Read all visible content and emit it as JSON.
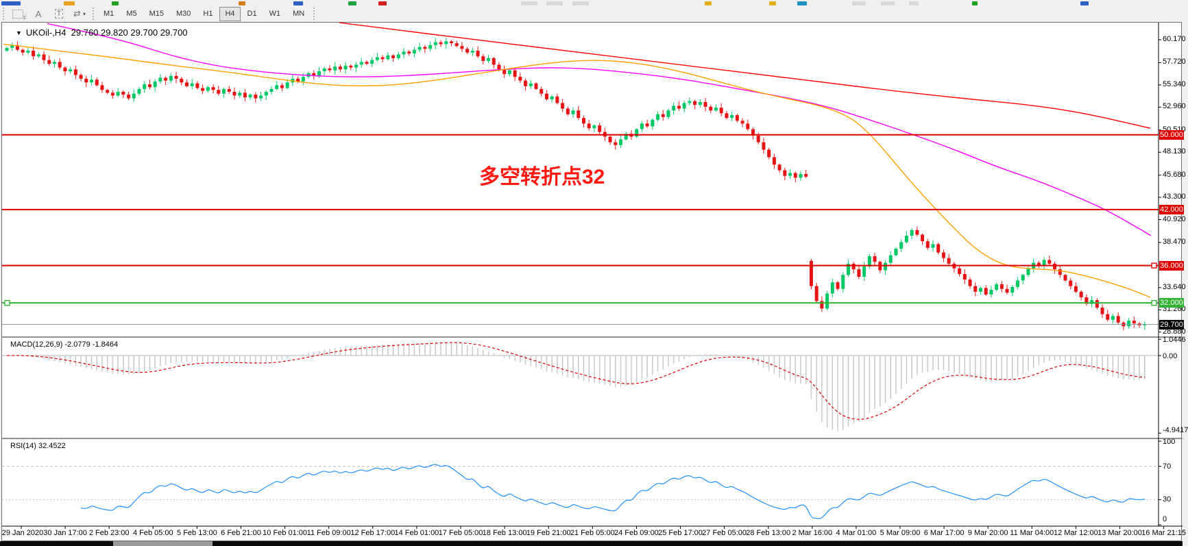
{
  "toolbar_top_fragments": [
    {
      "x": 2,
      "w": 28,
      "c": "#2f5fc4"
    },
    {
      "x": 93,
      "w": 16,
      "c": "#e8a020"
    },
    {
      "x": 163,
      "w": 10,
      "c": "#22a022"
    },
    {
      "x": 348,
      "w": 10,
      "c": "#d08020"
    },
    {
      "x": 428,
      "w": 14,
      "c": "#3060c0"
    },
    {
      "x": 508,
      "w": 12,
      "c": "#22a044"
    },
    {
      "x": 552,
      "w": 12,
      "c": "#d02020"
    },
    {
      "x": 760,
      "w": 24,
      "c": "#d8d8d8"
    },
    {
      "x": 797,
      "w": 24,
      "c": "#d8d8d8"
    },
    {
      "x": 835,
      "w": 24,
      "c": "#d8d8d8"
    },
    {
      "x": 1028,
      "w": 10,
      "c": "#e0b020"
    },
    {
      "x": 1122,
      "w": 10,
      "c": "#e0b020"
    },
    {
      "x": 1163,
      "w": 14,
      "c": "#2090c0"
    },
    {
      "x": 1243,
      "w": 20,
      "c": "#d8d8d8"
    },
    {
      "x": 1285,
      "w": 20,
      "c": "#d8d8d8"
    },
    {
      "x": 1326,
      "w": 14,
      "c": "#d8d8d8"
    },
    {
      "x": 1418,
      "w": 8,
      "c": "#22a022"
    },
    {
      "x": 1576,
      "w": 12,
      "c": "#3060c0"
    }
  ],
  "toolbar": {
    "tools": [
      {
        "name": "fibonacci-tool",
        "glyph": ""
      },
      {
        "name": "text-tool",
        "glyph": "A"
      },
      {
        "name": "label-tool",
        "glyph": "T"
      },
      {
        "name": "arrows-tool",
        "glyph": "⇄"
      }
    ],
    "timeframes": [
      "M1",
      "M5",
      "M15",
      "M30",
      "H1",
      "H4",
      "D1",
      "W1",
      "MN"
    ],
    "active_timeframe": "H4"
  },
  "chart": {
    "collapse_icon": "▼",
    "symbol_line": "UKOil-,H4  29.760 29.820 29.700 29.700",
    "annotation": {
      "text": "多空转折点32",
      "color": "#ff1810"
    },
    "price_axis_ticks": [
      "60.170",
      "57.720",
      "55.340",
      "52.960",
      "50.510",
      "48.130",
      "45.680",
      "43.300",
      "40.920",
      "38.470",
      "33.640",
      "31.260",
      "28.880"
    ],
    "hlines": [
      {
        "label": "50.000",
        "price": 50.0,
        "color": "#e00000",
        "width": 2,
        "handles": []
      },
      {
        "label": "42.000",
        "price": 42.0,
        "color": "#e00000",
        "width": 2,
        "handles": []
      },
      {
        "label": "36.000",
        "price": 36.0,
        "color": "#e00000",
        "width": 2,
        "handles": [
          "right"
        ]
      },
      {
        "label": "32.000",
        "price": 32.0,
        "color": "#32b432",
        "width": 2,
        "handles": [
          "left",
          "right"
        ]
      }
    ],
    "bid_line": {
      "label": "29.700",
      "price": 29.7,
      "color": "#8c98a4",
      "badge_bg": "#000000"
    }
  },
  "macd": {
    "label": "MACD(12,26,9) -2.0779 -1.8464",
    "fast": 12,
    "slow": 26,
    "signal": 9,
    "value": "-2.0779",
    "signal_value": "-1.8464",
    "axis_ticks": [
      {
        "text": "1.0446",
        "value": 1.0446
      },
      {
        "text": "0.00",
        "value": 0.0
      },
      {
        "text": "-4.9417",
        "value": -4.9417
      }
    ],
    "ylim": [
      -5.15,
      1.05
    ]
  },
  "rsi": {
    "label": "RSI(14) 32.4522",
    "period": 14,
    "value": "32.4522",
    "axis_ticks": [
      {
        "text": "100",
        "value": 100
      },
      {
        "text": "70",
        "value": 70
      },
      {
        "text": "30",
        "value": 30
      },
      {
        "text": "0",
        "value": 0
      }
    ],
    "levels": [
      70,
      30
    ],
    "ylim": [
      0,
      100
    ]
  },
  "time_axis": {
    "labels": [
      "29 Jan 2020",
      "30 Jan 17:00",
      "2 Feb 23:00",
      "4 Feb 05:00",
      "5 Feb 13:00",
      "6 Feb 21:00",
      "10 Feb 01:00",
      "11 Feb 09:00",
      "12 Feb 17:00",
      "14 Feb 01:00",
      "17 Feb 05:00",
      "18 Feb 13:00",
      "19 Feb 21:00",
      "21 Feb 05:00",
      "24 Feb 09:00",
      "25 Feb 17:00",
      "27 Feb 05:00",
      "28 Feb 13:00",
      "2 Mar 16:00",
      "4 Mar 01:00",
      "5 Mar 09:00",
      "6 Mar 17:00",
      "9 Mar 20:00",
      "11 Mar 04:00",
      "12 Mar 12:00",
      "13 Mar 20:00",
      "16 Mar 21:15"
    ]
  },
  "chart_data": {
    "type": "candlestick",
    "symbol": "UKOil-",
    "timeframe": "H4",
    "ylim": [
      28.42,
      61.86
    ],
    "closes": [
      59.3,
      59.6,
      59.1,
      58.8,
      59.0,
      58.4,
      58.6,
      58.0,
      57.6,
      57.8,
      57.2,
      56.8,
      57.0,
      56.4,
      56.0,
      55.6,
      55.9,
      55.3,
      54.8,
      54.5,
      54.2,
      54.6,
      54.3,
      53.9,
      54.4,
      54.9,
      55.4,
      55.1,
      55.7,
      56.1,
      55.8,
      56.3,
      56.0,
      55.6,
      55.2,
      55.5,
      55.0,
      54.7,
      55.1,
      54.8,
      54.4,
      54.9,
      54.6,
      54.2,
      54.5,
      54.0,
      54.3,
      53.9,
      54.2,
      54.6,
      54.9,
      55.3,
      55.0,
      55.6,
      56.0,
      55.7,
      56.2,
      56.6,
      56.3,
      56.8,
      57.1,
      56.9,
      57.3,
      57.0,
      57.4,
      57.2,
      57.5,
      57.8,
      57.6,
      58.0,
      58.3,
      58.1,
      58.5,
      58.2,
      58.6,
      58.9,
      58.7,
      59.1,
      59.4,
      59.2,
      59.6,
      59.9,
      59.7,
      60.0,
      59.8,
      59.5,
      59.2,
      58.8,
      59.0,
      58.4,
      57.9,
      58.2,
      57.5,
      57.0,
      56.5,
      56.9,
      56.2,
      55.8,
      55.2,
      55.5,
      54.9,
      54.4,
      53.8,
      54.1,
      53.4,
      52.8,
      52.2,
      52.6,
      51.8,
      51.2,
      50.7,
      51.0,
      50.3,
      49.8,
      49.2,
      48.9,
      49.5,
      50.1,
      49.8,
      50.6,
      51.2,
      50.9,
      51.6,
      52.2,
      51.9,
      52.6,
      53.1,
      52.8,
      53.4,
      53.6,
      53.2,
      53.5,
      53.0,
      52.6,
      52.9,
      52.3,
      51.8,
      52.1,
      51.5,
      51.2,
      50.6,
      49.9,
      49.2,
      48.4,
      47.6,
      46.8,
      46.2,
      45.6,
      45.9,
      45.4,
      45.8,
      45.5,
      33.8,
      32.2,
      31.4,
      33.0,
      34.2,
      33.5,
      35.0,
      36.2,
      35.6,
      34.8,
      35.9,
      37.0,
      36.4,
      35.5,
      36.3,
      37.1,
      37.8,
      38.5,
      39.2,
      39.8,
      39.3,
      38.6,
      37.9,
      38.3,
      37.4,
      36.8,
      36.2,
      35.7,
      35.1,
      34.5,
      33.8,
      33.2,
      33.6,
      32.9,
      33.4,
      34.0,
      33.5,
      33.1,
      33.7,
      34.4,
      35.0,
      35.7,
      36.3,
      36.0,
      36.6,
      36.2,
      35.6,
      35.0,
      34.4,
      33.8,
      33.2,
      32.6,
      31.9,
      32.3,
      31.5,
      30.8,
      30.2,
      30.6,
      29.9,
      29.5,
      30.1,
      29.8,
      29.6,
      29.7
    ],
    "opens_override": {
      "0": 59.0,
      "152": 36.5
    },
    "ma_orange": [
      [
        2,
        59.7
      ],
      [
        80,
        59.0
      ],
      [
        160,
        58.3
      ],
      [
        240,
        57.5
      ],
      [
        320,
        56.8
      ],
      [
        390,
        56.1
      ],
      [
        450,
        55.5
      ],
      [
        510,
        55.2
      ],
      [
        570,
        55.3
      ],
      [
        630,
        55.8
      ],
      [
        690,
        56.5
      ],
      [
        750,
        57.2
      ],
      [
        800,
        57.7
      ],
      [
        850,
        58.0
      ],
      [
        900,
        57.9
      ],
      [
        950,
        57.4
      ],
      [
        1000,
        56.6
      ],
      [
        1050,
        55.6
      ],
      [
        1100,
        54.6
      ],
      [
        1150,
        53.8
      ],
      [
        1200,
        53.0
      ],
      [
        1240,
        51.8
      ],
      [
        1270,
        49.8
      ],
      [
        1300,
        47.2
      ],
      [
        1330,
        44.6
      ],
      [
        1360,
        42.2
      ],
      [
        1390,
        39.9
      ],
      [
        1415,
        38.1
      ],
      [
        1440,
        36.8
      ],
      [
        1465,
        36.0
      ],
      [
        1490,
        35.7
      ],
      [
        1520,
        35.6
      ],
      [
        1550,
        35.4
      ],
      [
        1580,
        34.9
      ],
      [
        1610,
        34.3
      ],
      [
        1645,
        33.5
      ],
      [
        1675,
        32.6
      ]
    ],
    "ma_magenta": [
      [
        66,
        61.9
      ],
      [
        130,
        60.9
      ],
      [
        190,
        59.8
      ],
      [
        250,
        58.4
      ],
      [
        310,
        57.4
      ],
      [
        370,
        56.8
      ],
      [
        430,
        56.4
      ],
      [
        490,
        56.2
      ],
      [
        550,
        56.2
      ],
      [
        610,
        56.4
      ],
      [
        670,
        56.7
      ],
      [
        730,
        57.0
      ],
      [
        790,
        57.2
      ],
      [
        850,
        57.1
      ],
      [
        910,
        56.7
      ],
      [
        970,
        56.2
      ],
      [
        1030,
        55.5
      ],
      [
        1090,
        54.7
      ],
      [
        1150,
        53.9
      ],
      [
        1210,
        52.9
      ],
      [
        1270,
        51.5
      ],
      [
        1330,
        50.0
      ],
      [
        1390,
        48.4
      ],
      [
        1450,
        46.6
      ],
      [
        1510,
        45.1
      ],
      [
        1560,
        43.6
      ],
      [
        1610,
        42.0
      ],
      [
        1660,
        39.9
      ],
      [
        1676,
        39.2
      ]
    ],
    "ma_red": [
      [
        492,
        62.0
      ],
      [
        600,
        61.0
      ],
      [
        700,
        60.1
      ],
      [
        800,
        59.2
      ],
      [
        900,
        58.3
      ],
      [
        1000,
        57.4
      ],
      [
        1100,
        56.5
      ],
      [
        1200,
        55.6
      ],
      [
        1300,
        54.7
      ],
      [
        1400,
        53.9
      ],
      [
        1500,
        53.2
      ],
      [
        1580,
        52.3
      ],
      [
        1675,
        50.7
      ]
    ]
  },
  "colors": {
    "up": "#00c864",
    "down": "#e61414",
    "ma_fast": "#ffa000",
    "ma_mid": "#ff00ff",
    "ma_slow": "#ff0000",
    "macd_hist": "#c8c8c8",
    "macd_signal": "#e00000",
    "rsi_line": "#1e90ff",
    "level_dash": "#c0c0c0",
    "badge_red": "#e00000",
    "badge_green": "#32b432",
    "badge_black": "#000000"
  }
}
